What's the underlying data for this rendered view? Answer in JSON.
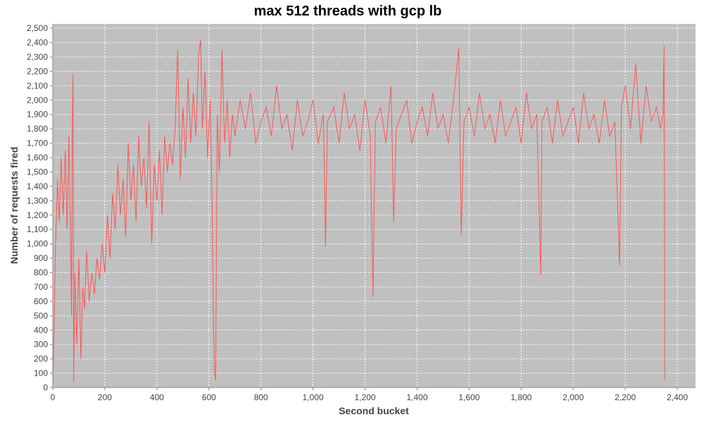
{
  "chart_data": {
    "type": "line",
    "title": "max 512 threads with gcp lb",
    "xlabel": "Second bucket",
    "ylabel": "Number of requests fired",
    "xlim": [
      0,
      2470
    ],
    "ylim": [
      0,
      2530
    ],
    "x_ticks": [
      0,
      200,
      400,
      600,
      800,
      1000,
      1200,
      1400,
      1600,
      1800,
      2000,
      2200,
      2400
    ],
    "x_tick_labels": [
      "0",
      "200",
      "400",
      "600",
      "800",
      "1,000",
      "1,200",
      "1,400",
      "1,600",
      "1,800",
      "2,000",
      "2,200",
      "2,400"
    ],
    "y_ticks": [
      0,
      100,
      200,
      300,
      400,
      500,
      600,
      700,
      800,
      900,
      1000,
      1100,
      1200,
      1300,
      1400,
      1500,
      1600,
      1700,
      1800,
      1900,
      2000,
      2100,
      2200,
      2300,
      2400,
      2500
    ],
    "y_tick_labels": [
      "0",
      "100",
      "200",
      "300",
      "400",
      "500",
      "600",
      "700",
      "800",
      "900",
      "1,000",
      "1,100",
      "1,200",
      "1,300",
      "1,400",
      "1,500",
      "1,600",
      "1,700",
      "1,800",
      "1,900",
      "2,000",
      "2,100",
      "2,200",
      "2,300",
      "2,400",
      "2,500"
    ],
    "grid": true,
    "legend": "none",
    "colors": {
      "plot_background": "#c0c0c0",
      "line": "#ff5555",
      "grid": "#ffffff"
    },
    "series": [
      {
        "values": [
          [
            0,
            0
          ],
          [
            5,
            400
          ],
          [
            10,
            950
          ],
          [
            18,
            1450
          ],
          [
            25,
            1150
          ],
          [
            32,
            1600
          ],
          [
            40,
            1200
          ],
          [
            48,
            1650
          ],
          [
            55,
            1100
          ],
          [
            62,
            1750
          ],
          [
            68,
            1050
          ],
          [
            72,
            500
          ],
          [
            75,
            1850
          ],
          [
            78,
            2180
          ],
          [
            80,
            40
          ],
          [
            85,
            800
          ],
          [
            92,
            300
          ],
          [
            100,
            900
          ],
          [
            108,
            200
          ],
          [
            115,
            700
          ],
          [
            122,
            550
          ],
          [
            130,
            950
          ],
          [
            140,
            600
          ],
          [
            150,
            800
          ],
          [
            160,
            650
          ],
          [
            170,
            900
          ],
          [
            180,
            750
          ],
          [
            190,
            1000
          ],
          [
            200,
            800
          ],
          [
            210,
            1200
          ],
          [
            220,
            900
          ],
          [
            230,
            1350
          ],
          [
            240,
            1100
          ],
          [
            250,
            1550
          ],
          [
            260,
            1200
          ],
          [
            270,
            1450
          ],
          [
            280,
            1050
          ],
          [
            290,
            1700
          ],
          [
            300,
            1300
          ],
          [
            310,
            1550
          ],
          [
            320,
            1150
          ],
          [
            330,
            1750
          ],
          [
            340,
            1400
          ],
          [
            350,
            1600
          ],
          [
            360,
            1250
          ],
          [
            370,
            1850
          ],
          [
            380,
            1000
          ],
          [
            390,
            1550
          ],
          [
            400,
            1300
          ],
          [
            410,
            1650
          ],
          [
            420,
            1200
          ],
          [
            430,
            1750
          ],
          [
            440,
            1500
          ],
          [
            450,
            1700
          ],
          [
            460,
            1550
          ],
          [
            470,
            1800
          ],
          [
            480,
            2350
          ],
          [
            490,
            1450
          ],
          [
            500,
            1950
          ],
          [
            510,
            1600
          ],
          [
            520,
            2150
          ],
          [
            530,
            1700
          ],
          [
            540,
            2050
          ],
          [
            550,
            1750
          ],
          [
            560,
            2300
          ],
          [
            568,
            2420
          ],
          [
            575,
            1800
          ],
          [
            585,
            2200
          ],
          [
            595,
            1600
          ],
          [
            605,
            2000
          ],
          [
            612,
            1300
          ],
          [
            618,
            400
          ],
          [
            622,
            100
          ],
          [
            626,
            50
          ],
          [
            632,
            1900
          ],
          [
            640,
            1500
          ],
          [
            650,
            2350
          ],
          [
            660,
            1700
          ],
          [
            670,
            2000
          ],
          [
            680,
            1600
          ],
          [
            690,
            1900
          ],
          [
            700,
            1750
          ],
          [
            720,
            2000
          ],
          [
            740,
            1800
          ],
          [
            760,
            2050
          ],
          [
            780,
            1700
          ],
          [
            800,
            1850
          ],
          [
            820,
            1950
          ],
          [
            840,
            1750
          ],
          [
            860,
            2100
          ],
          [
            880,
            1800
          ],
          [
            900,
            1900
          ],
          [
            920,
            1650
          ],
          [
            940,
            2000
          ],
          [
            960,
            1750
          ],
          [
            980,
            1850
          ],
          [
            1000,
            2000
          ],
          [
            1020,
            1700
          ],
          [
            1040,
            1900
          ],
          [
            1048,
            980
          ],
          [
            1055,
            1850
          ],
          [
            1080,
            1950
          ],
          [
            1100,
            1700
          ],
          [
            1120,
            2050
          ],
          [
            1140,
            1800
          ],
          [
            1160,
            1900
          ],
          [
            1180,
            1650
          ],
          [
            1200,
            2000
          ],
          [
            1220,
            1750
          ],
          [
            1230,
            630
          ],
          [
            1240,
            1850
          ],
          [
            1260,
            1950
          ],
          [
            1280,
            1700
          ],
          [
            1300,
            2100
          ],
          [
            1310,
            1150
          ],
          [
            1320,
            1800
          ],
          [
            1340,
            1900
          ],
          [
            1360,
            2000
          ],
          [
            1380,
            1700
          ],
          [
            1400,
            1850
          ],
          [
            1420,
            1950
          ],
          [
            1440,
            1750
          ],
          [
            1460,
            2050
          ],
          [
            1480,
            1800
          ],
          [
            1500,
            1900
          ],
          [
            1520,
            1700
          ],
          [
            1540,
            2000
          ],
          [
            1560,
            2360
          ],
          [
            1570,
            1060
          ],
          [
            1580,
            1850
          ],
          [
            1600,
            1950
          ],
          [
            1620,
            1750
          ],
          [
            1640,
            2050
          ],
          [
            1660,
            1800
          ],
          [
            1680,
            1900
          ],
          [
            1700,
            1700
          ],
          [
            1720,
            2000
          ],
          [
            1740,
            1750
          ],
          [
            1760,
            1850
          ],
          [
            1780,
            1950
          ],
          [
            1800,
            1700
          ],
          [
            1820,
            2050
          ],
          [
            1840,
            1800
          ],
          [
            1860,
            1900
          ],
          [
            1875,
            780
          ],
          [
            1880,
            1850
          ],
          [
            1900,
            1950
          ],
          [
            1920,
            1700
          ],
          [
            1940,
            2000
          ],
          [
            1960,
            1750
          ],
          [
            1980,
            1850
          ],
          [
            2000,
            1950
          ],
          [
            2020,
            1700
          ],
          [
            2040,
            2050
          ],
          [
            2060,
            1800
          ],
          [
            2080,
            1900
          ],
          [
            2100,
            1700
          ],
          [
            2120,
            2000
          ],
          [
            2140,
            1750
          ],
          [
            2160,
            1850
          ],
          [
            2178,
            850
          ],
          [
            2185,
            1950
          ],
          [
            2200,
            2100
          ],
          [
            2220,
            1800
          ],
          [
            2240,
            2250
          ],
          [
            2260,
            1700
          ],
          [
            2280,
            2100
          ],
          [
            2300,
            1850
          ],
          [
            2320,
            1950
          ],
          [
            2335,
            1800
          ],
          [
            2345,
            1900
          ],
          [
            2349,
            2380
          ],
          [
            2352,
            50
          ]
        ]
      }
    ]
  }
}
